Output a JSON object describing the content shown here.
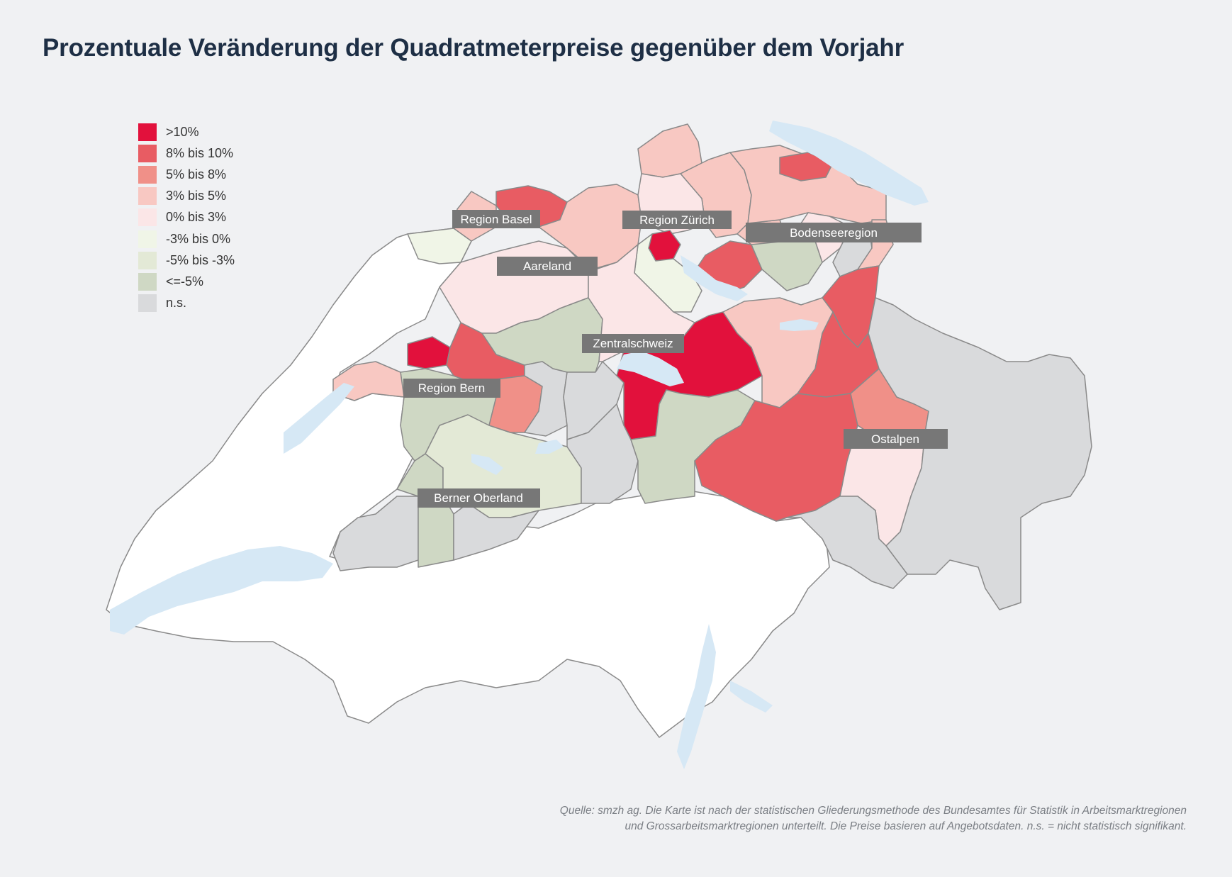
{
  "title": "Prozentuale Veränderung der Quadratmeterpreise gegenüber dem Vorjahr",
  "legend": [
    {
      "label": ">10%",
      "color": "#e2113c"
    },
    {
      "label": "8% bis 10%",
      "color": "#e85c63"
    },
    {
      "label": "5% bis 8%",
      "color": "#f09088"
    },
    {
      "label": "3% bis 5%",
      "color": "#f8c8c2"
    },
    {
      "label": "0% bis 3%",
      "color": "#fbe6e7"
    },
    {
      "label": "-3% bis 0%",
      "color": "#f0f5e7"
    },
    {
      "label": "-5% bis  -3%",
      "color": "#e3e9d6"
    },
    {
      "label": "<=-5%",
      "color": "#cfd8c4"
    },
    {
      "label": "n.s.",
      "color": "#d9dadc"
    }
  ],
  "regions": [
    {
      "label": "Region Basel",
      "category": "8% bis 10%"
    },
    {
      "label": "Region Zürich",
      "category": ">10%"
    },
    {
      "label": "Bodenseeregion",
      "category": "3% bis 5%"
    },
    {
      "label": "Aareland",
      "category": "0% bis 3%"
    },
    {
      "label": "Zentralschweiz",
      "category": ">10%"
    },
    {
      "label": "Region Bern",
      "category": "<=-5%"
    },
    {
      "label": "Ostalpen",
      "category": "8% bis 10%"
    },
    {
      "label": "Berner Oberland",
      "category": "-5% bis  -3%"
    }
  ],
  "source_line1": "Quelle: smzh ag. Die Karte ist nach der statistischen Gliederungsmethode des Bundesamtes für Statistik in Arbeitsmarktregionen",
  "source_line2": "und Grossarbeitsmarktregionen unterteilt. Die Preise basieren auf Angebotsdaten. n.s. = nicht statistisch signifikant.",
  "colors": {
    "background": "#f0f1f3",
    "lake": "#d6e8f5",
    "border": "#8a8a8a",
    "white_region": "#ffffff",
    "label_box": "#777777"
  }
}
